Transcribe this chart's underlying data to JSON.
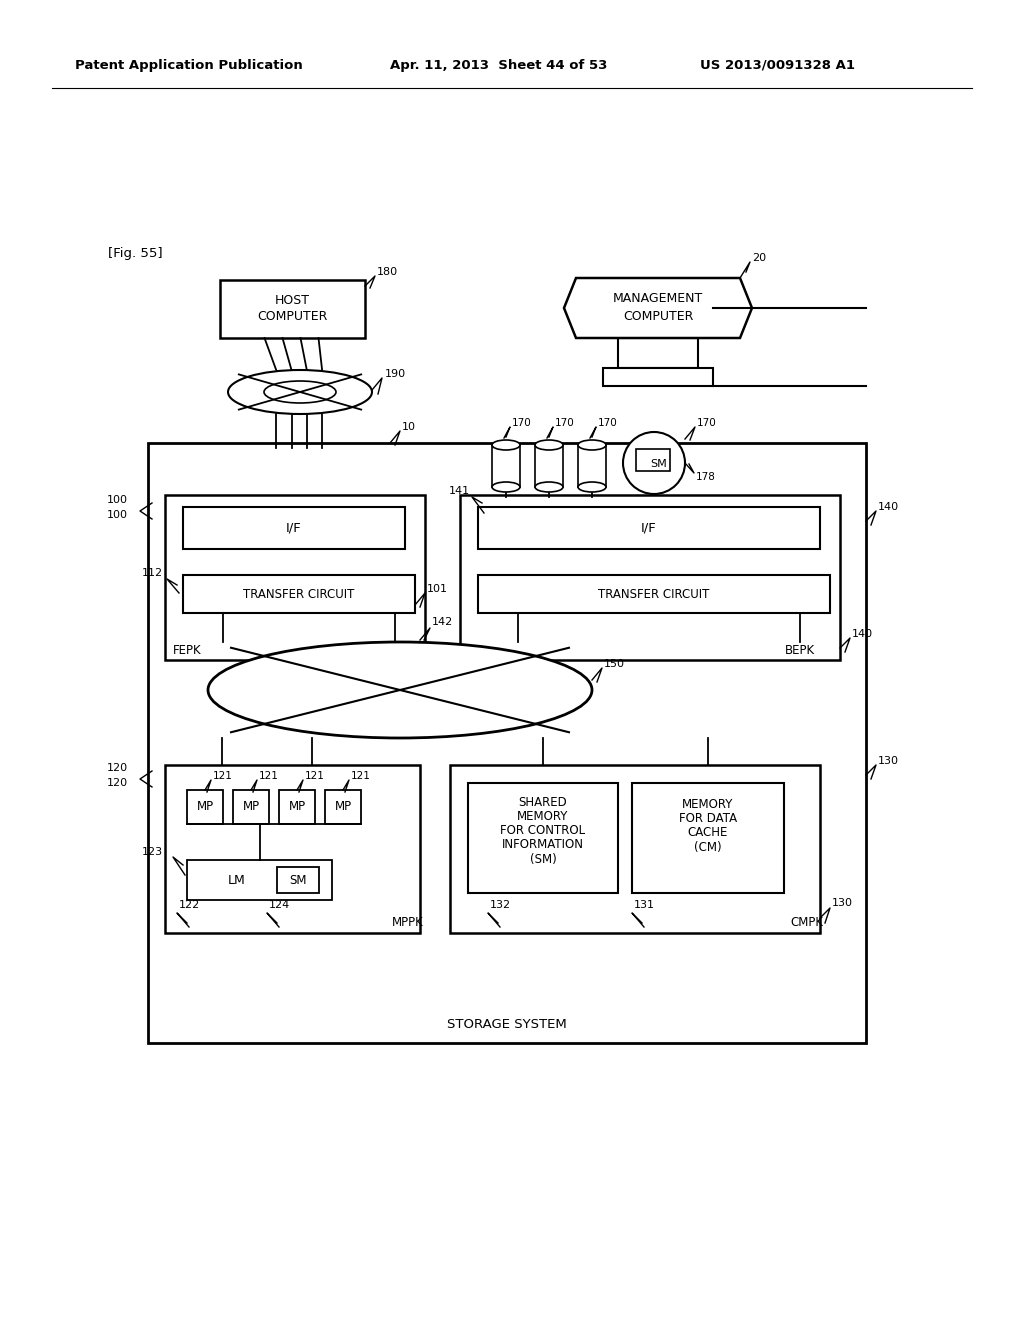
{
  "bg_color": "#ffffff",
  "header_left": "Patent Application Publication",
  "header_mid": "Apr. 11, 2013  Sheet 44 of 53",
  "header_right": "US 2013/0091328 A1",
  "fig_label": "[Fig. 55]",
  "storage_system_label": "STORAGE SYSTEM"
}
